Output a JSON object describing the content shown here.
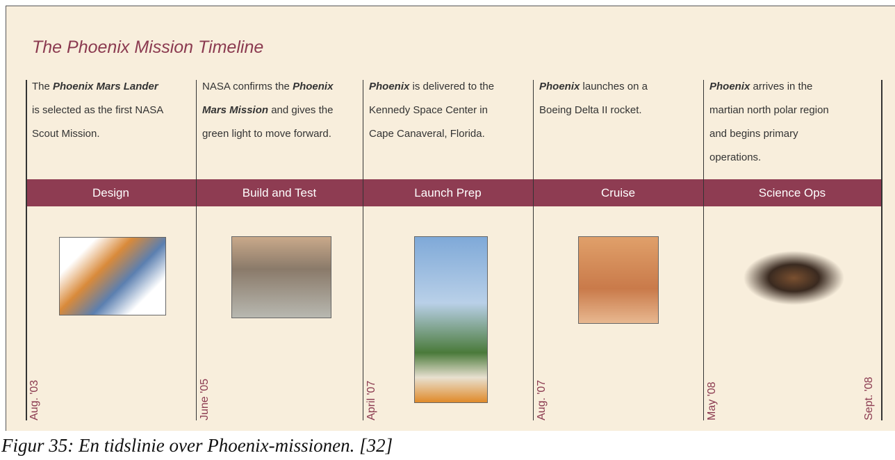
{
  "title": "The Phoenix Mission Timeline",
  "columns": [
    {
      "description": [
        {
          "text": "The "
        },
        {
          "text": "Phoenix Mars Lander",
          "bold": true
        },
        {
          "text": " is selected as the first NASA Scout Mission."
        }
      ],
      "phase": "Design",
      "date": "Aug. '03"
    },
    {
      "description": [
        {
          "text": "NASA confirms the "
        },
        {
          "text": "Phoenix Mars Mission",
          "bold": true
        },
        {
          "text": " and gives the green light to move forward."
        }
      ],
      "phase": "Build and Test",
      "date": "June '05"
    },
    {
      "description": [
        {
          "text": "Phoenix",
          "bold": true
        },
        {
          "text": " is delivered to the Kennedy Space Center in Cape Canaveral, Florida."
        }
      ],
      "phase": "Launch Prep",
      "date": "April '07"
    },
    {
      "description": [
        {
          "text": "Phoenix",
          "bold": true
        },
        {
          "text": " launches on a Boeing Delta II rocket."
        }
      ],
      "phase": "Cruise",
      "date": "Aug. '07"
    },
    {
      "description": [
        {
          "text": "Phoenix",
          "bold": true
        },
        {
          "text": " arrives in the martian north polar region and begins primary operations."
        }
      ],
      "phase": "Science Ops",
      "date": "May '08"
    }
  ],
  "end_date": "Sept. '08",
  "caption": "Figur 35: En tidslinie over Phoenix-missionen. [32]"
}
